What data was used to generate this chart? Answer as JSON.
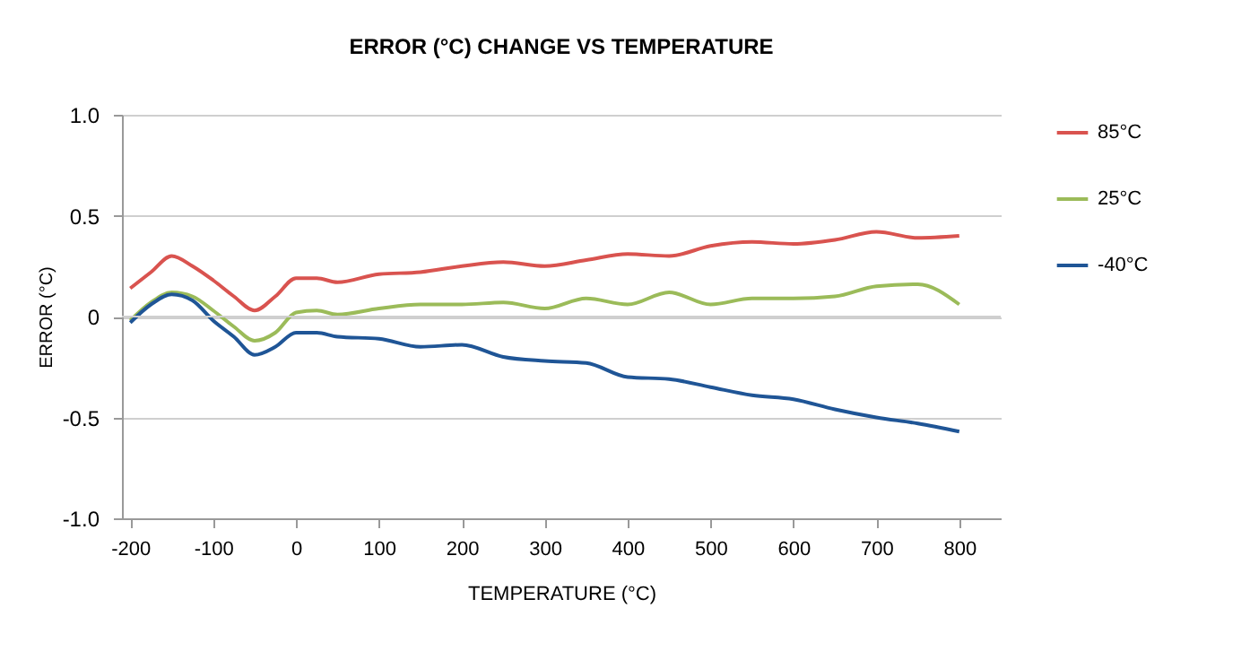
{
  "chart_data": {
    "type": "line",
    "title": "ERROR (°C) CHANGE VS TEMPERATURE",
    "xlabel": "TEMPERATURE (°C)",
    "ylabel": "ERROR (°C)",
    "x": [
      -200,
      -175,
      -150,
      -125,
      -100,
      -75,
      -50,
      -25,
      0,
      25,
      50,
      100,
      150,
      200,
      250,
      300,
      350,
      400,
      450,
      500,
      550,
      600,
      650,
      700,
      750,
      800
    ],
    "series": [
      {
        "name": "85°C",
        "color": "#d9534f",
        "values": [
          0.14,
          0.22,
          0.3,
          0.25,
          0.18,
          0.1,
          0.03,
          0.1,
          0.19,
          0.19,
          0.17,
          0.21,
          0.22,
          0.25,
          0.27,
          0.25,
          0.28,
          0.31,
          0.3,
          0.35,
          0.37,
          0.36,
          0.38,
          0.42,
          0.39,
          0.4
        ]
      },
      {
        "name": "25°C",
        "color": "#9bbb59",
        "values": [
          -0.02,
          0.07,
          0.12,
          0.1,
          0.03,
          -0.05,
          -0.12,
          -0.08,
          0.02,
          0.03,
          0.01,
          0.04,
          0.06,
          0.06,
          0.07,
          0.04,
          0.09,
          0.06,
          0.12,
          0.06,
          0.09,
          0.09,
          0.1,
          0.15,
          0.16,
          0.06
        ]
      },
      {
        "name": "-40°C",
        "color": "#1f5596",
        "values": [
          -0.03,
          0.06,
          0.11,
          0.08,
          -0.02,
          -0.1,
          -0.19,
          -0.15,
          -0.08,
          -0.08,
          -0.1,
          -0.11,
          -0.15,
          -0.14,
          -0.2,
          -0.22,
          -0.23,
          -0.3,
          -0.31,
          -0.35,
          -0.39,
          -0.41,
          -0.46,
          -0.5,
          -0.53,
          -0.57
        ]
      }
    ],
    "xlim": [
      -210,
      850
    ],
    "xticks": [
      -200,
      -100,
      0,
      100,
      200,
      300,
      400,
      500,
      600,
      700,
      800
    ],
    "ylim": [
      -1.0,
      1.0
    ],
    "yticks": [
      {
        "value": 1.0,
        "label": "1.0"
      },
      {
        "value": 0.5,
        "label": "0.5"
      },
      0,
      {
        "value": -0.5,
        "label": "-0.5"
      },
      {
        "value": -1.0,
        "label": "-1.0"
      }
    ],
    "grid": "y",
    "legend": "right",
    "marker": "none",
    "line_style": "solid"
  }
}
